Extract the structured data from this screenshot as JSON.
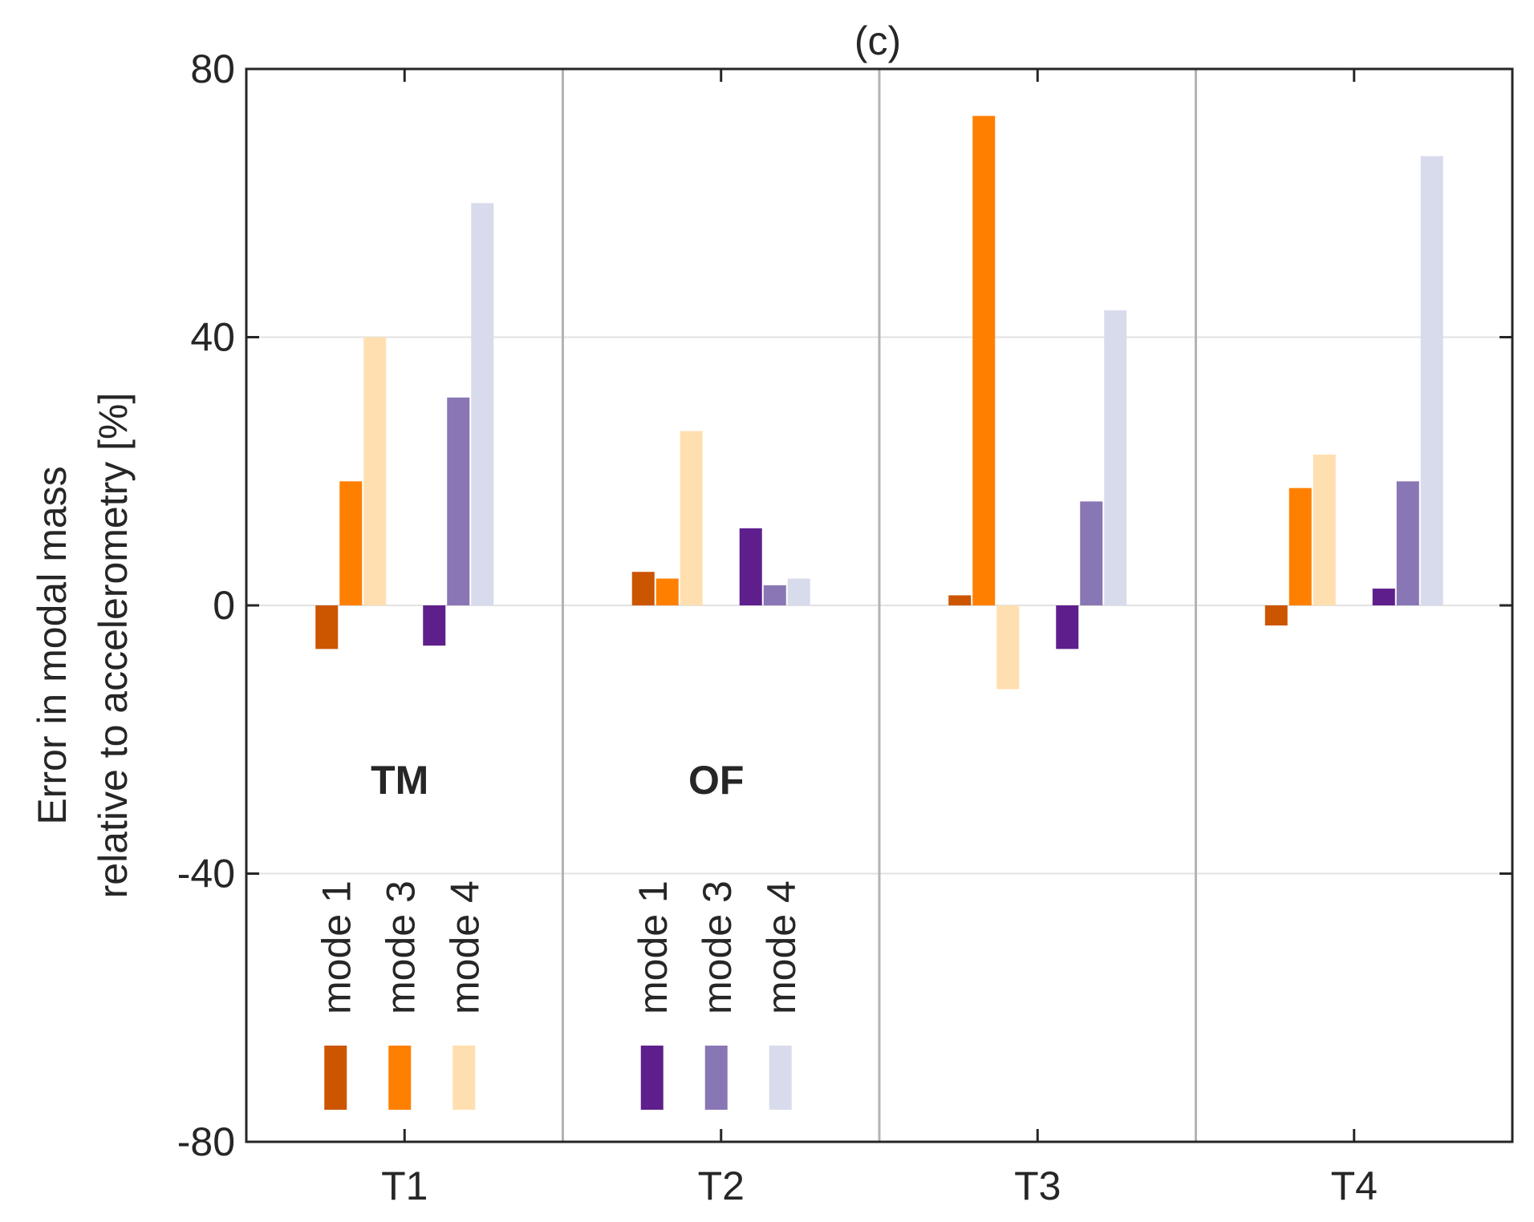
{
  "chart_data": {
    "type": "bar",
    "title": "(c)",
    "xlabel": "",
    "ylabel_lines": [
      "Error in modal mass",
      "relative to accelerometry [%]"
    ],
    "categories": [
      "T1",
      "T2",
      "T3",
      "T4"
    ],
    "ylim": [
      -80,
      80
    ],
    "yticks": [
      80,
      40,
      0,
      -40,
      -80
    ],
    "ytick_labels": [
      "80",
      "40",
      "0",
      "-40",
      "-80"
    ],
    "grid": true,
    "series": [
      {
        "name": "TM mode 1",
        "group": "TM",
        "color": "#cc5500",
        "values": [
          -6.5,
          5,
          1.5,
          -3
        ]
      },
      {
        "name": "TM mode 3",
        "group": "TM",
        "color": "#ff8000",
        "values": [
          18.5,
          4,
          73,
          17.5
        ]
      },
      {
        "name": "TM mode 4",
        "group": "TM",
        "color": "#ffdfb0",
        "values": [
          40,
          26,
          -12.5,
          22.5
        ]
      },
      {
        "name": "OF mode 1",
        "group": "OF",
        "color": "#5e1f8c",
        "values": [
          -6,
          11.5,
          -6.5,
          2.5
        ]
      },
      {
        "name": "OF mode 3",
        "group": "OF",
        "color": "#8976b4",
        "values": [
          31,
          3,
          15.5,
          18.5
        ]
      },
      {
        "name": "OF mode 4",
        "group": "OF",
        "color": "#d8dbec",
        "values": [
          60,
          4,
          44,
          67
        ]
      }
    ],
    "legend": {
      "placement": "bottom-left",
      "groups": [
        {
          "title": "TM",
          "labels": [
            "mode 1",
            "mode 3",
            "mode 4"
          ],
          "colors": [
            "#cc5500",
            "#ff8000",
            "#ffdfb0"
          ]
        },
        {
          "title": "OF",
          "labels": [
            "mode 1",
            "mode 3",
            "mode 4"
          ],
          "colors": [
            "#5e1f8c",
            "#8976b4",
            "#d8dbec"
          ]
        }
      ]
    }
  }
}
